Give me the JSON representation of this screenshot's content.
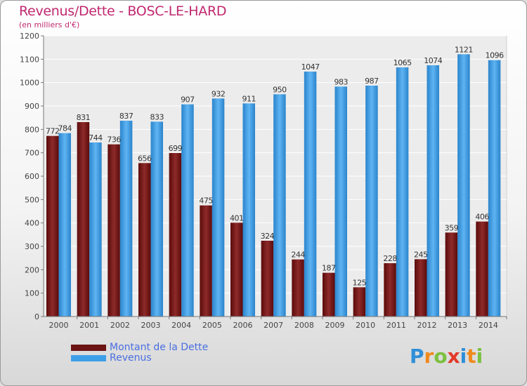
{
  "title": "Revenus/Dette - BOSC-LE-HARD",
  "subtitle": "(en milliers d'€)",
  "logo": {
    "letters": [
      "P",
      "r",
      "o",
      "x",
      "i",
      "t",
      "i"
    ],
    "colors": [
      "#2f8fd8",
      "#f08a1c",
      "#7cc040",
      "#e23a2a",
      "#2f8fd8",
      "#f08a1c",
      "#7cc040"
    ]
  },
  "chart_data": {
    "type": "bar",
    "categories": [
      "2000",
      "2001",
      "2002",
      "2003",
      "2004",
      "2005",
      "2006",
      "2007",
      "2008",
      "2009",
      "2010",
      "2011",
      "2012",
      "2013",
      "2014"
    ],
    "series": [
      {
        "name": "Montant de la Dette",
        "color": "#7a1c1c",
        "values": [
          772,
          831,
          736,
          656,
          699,
          475,
          401,
          324,
          244,
          187,
          125,
          228,
          245,
          359,
          406
        ]
      },
      {
        "name": "Revenus",
        "color": "#3d9fe8",
        "values": [
          784,
          744,
          837,
          833,
          907,
          932,
          911,
          950,
          1047,
          983,
          987,
          1065,
          1074,
          1121,
          1096
        ]
      }
    ],
    "yticks": [
      0,
      100,
      200,
      300,
      400,
      500,
      600,
      700,
      800,
      900,
      1000,
      1100,
      1200
    ],
    "ylim": [
      0,
      1200
    ],
    "grid": true,
    "legend": "bottom-left"
  }
}
